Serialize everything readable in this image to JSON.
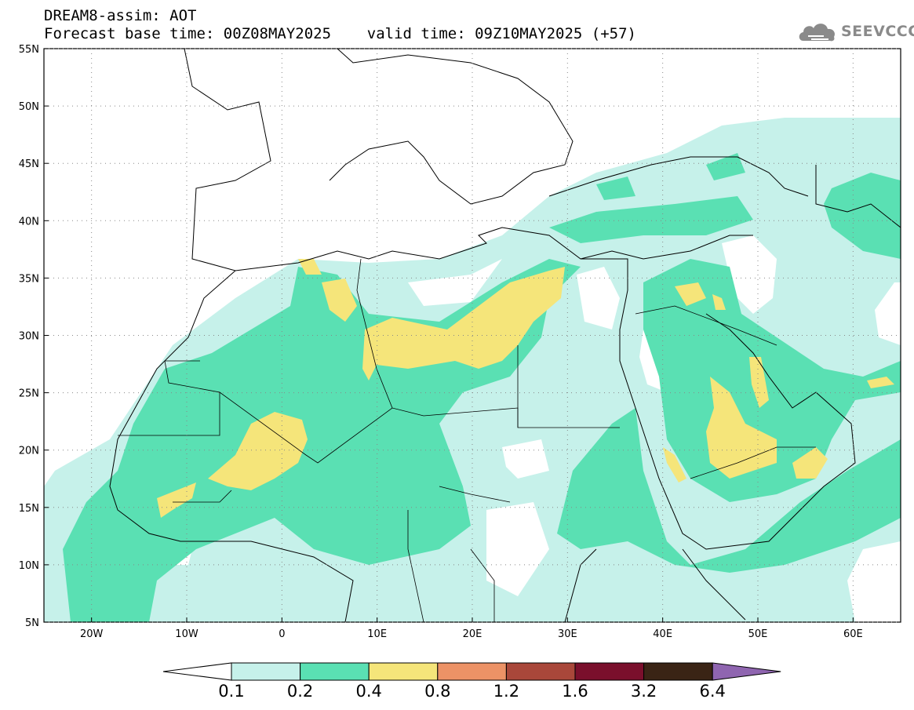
{
  "header": {
    "line1": "DREAM8-assim: AOT",
    "line2": "Forecast base time: 00Z08MAY2025    valid time: 09Z10MAY2025 (+57)"
  },
  "logo": {
    "text": "SEEVCCC",
    "icon": "cloud-icon",
    "color": "#8a8a8a"
  },
  "map": {
    "extent": {
      "lon": [
        -25,
        65
      ],
      "lat": [
        5,
        55
      ]
    },
    "lon_ticks": [
      {
        "value": -20,
        "label": "20W"
      },
      {
        "value": -10,
        "label": "10W"
      },
      {
        "value": 0,
        "label": "0"
      },
      {
        "value": 10,
        "label": "10E"
      },
      {
        "value": 20,
        "label": "20E"
      },
      {
        "value": 30,
        "label": "30E"
      },
      {
        "value": 40,
        "label": "40E"
      },
      {
        "value": 50,
        "label": "50E"
      },
      {
        "value": 60,
        "label": "60E"
      }
    ],
    "lat_ticks": [
      {
        "value": 55,
        "label": "55N"
      },
      {
        "value": 50,
        "label": "50N"
      },
      {
        "value": 45,
        "label": "45N"
      },
      {
        "value": 40,
        "label": "40N"
      },
      {
        "value": 35,
        "label": "35N"
      },
      {
        "value": 30,
        "label": "30N"
      },
      {
        "value": 25,
        "label": "25N"
      },
      {
        "value": 20,
        "label": "20N"
      },
      {
        "value": 15,
        "label": "15N"
      },
      {
        "value": 10,
        "label": "10N"
      },
      {
        "value": 5,
        "label": "5N"
      }
    ]
  },
  "colorbar": {
    "colors": [
      "#c6f1ea",
      "#5ae0b3",
      "#f5e57a",
      "#ec9266",
      "#a9473a",
      "#7a0f2c",
      "#3a2415",
      "#8f65b0"
    ],
    "labels": [
      "0.1",
      "0.2",
      "0.4",
      "0.8",
      "1.2",
      "1.6",
      "3.2",
      "6.4"
    ]
  }
}
